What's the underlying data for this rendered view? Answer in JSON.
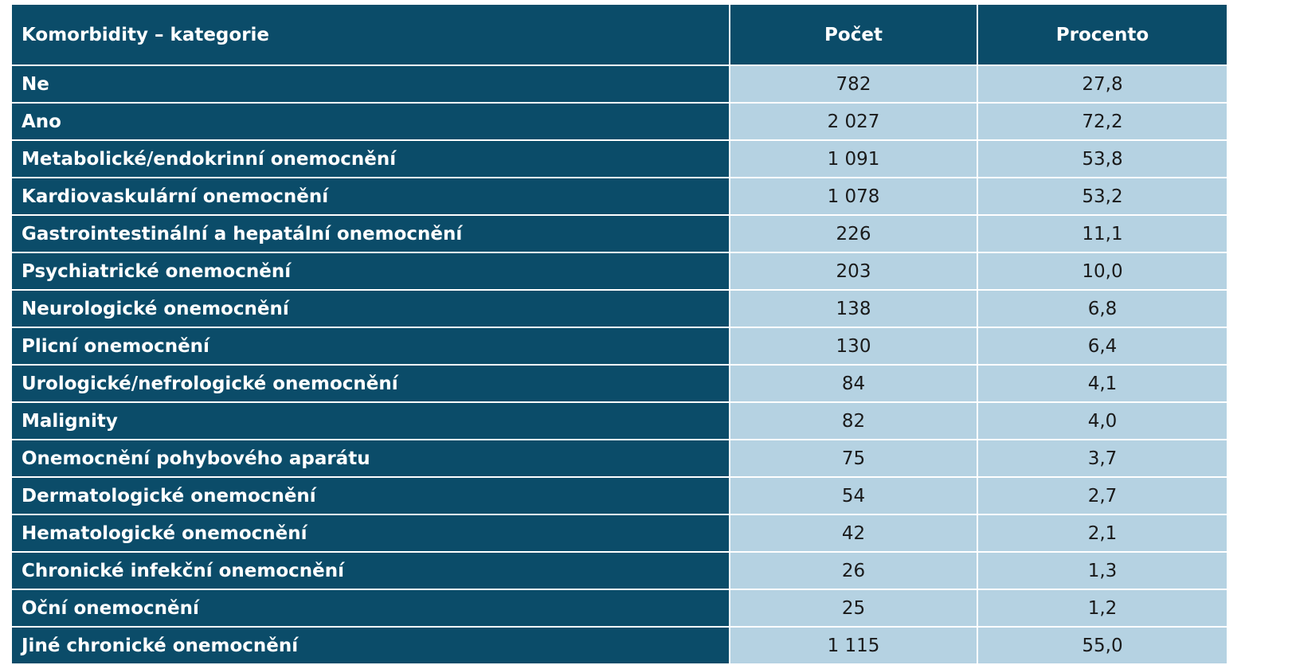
{
  "table": {
    "headers": [
      "Komorbidity – kategorie",
      "Počet",
      "Procento"
    ],
    "rows": [
      {
        "label": "Ne",
        "count": "782",
        "percent": "27,8"
      },
      {
        "label": "Ano",
        "count": "2 027",
        "percent": "72,2"
      },
      {
        "label": "Metabolické/endokrinní onemocnění",
        "count": "1 091",
        "percent": "53,8"
      },
      {
        "label": "Kardiovaskulární onemocnění",
        "count": "1 078",
        "percent": "53,2"
      },
      {
        "label": "Gastrointestinální a hepatální onemocnění",
        "count": "226",
        "percent": "11,1"
      },
      {
        "label": "Psychiatrické onemocnění",
        "count": "203",
        "percent": "10,0"
      },
      {
        "label": "Neurologické onemocnění",
        "count": "138",
        "percent": "6,8"
      },
      {
        "label": "Plicní onemocnění",
        "count": "130",
        "percent": "6,4"
      },
      {
        "label": "Urologické/nefrologické onemocnění",
        "count": "84",
        "percent": "4,1"
      },
      {
        "label": "Malignity",
        "count": "82",
        "percent": "4,0"
      },
      {
        "label": "Onemocnění pohybového aparátu",
        "count": "75",
        "percent": "3,7"
      },
      {
        "label": "Dermatologické onemocnění",
        "count": "54",
        "percent": "2,7"
      },
      {
        "label": "Hematologické onemocnění",
        "count": "42",
        "percent": "2,1"
      },
      {
        "label": "Chronické infekční onemocnění",
        "count": "26",
        "percent": "1,3"
      },
      {
        "label": "Oční onemocnění",
        "count": "25",
        "percent": "1,2"
      },
      {
        "label": "Jiné chronické onemocnění",
        "count": "1 115",
        "percent": "55,0"
      }
    ]
  },
  "colors": {
    "header_bg": "#0b4c69",
    "value_bg": "#b5d2e2",
    "header_text": "#ffffff"
  }
}
